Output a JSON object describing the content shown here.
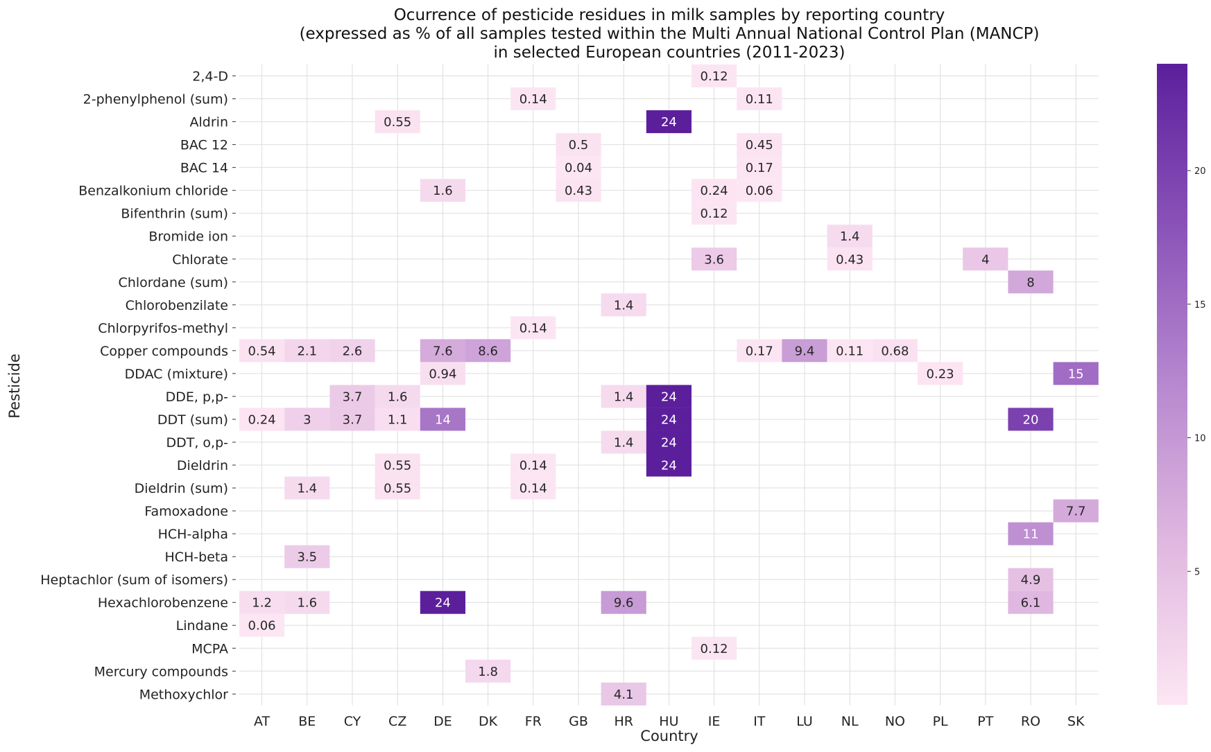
{
  "chart_data": {
    "type": "heatmap",
    "title": [
      "Ocurrence of pesticide residues in milk samples by reporting country",
      "(expressed as % of all samples tested within the Multi Annual National Control Plan (MANCP)",
      "in selected European countries (2011-2023)"
    ],
    "xlabel": "Country",
    "ylabel": "Pesticide",
    "x": [
      "AT",
      "BE",
      "CY",
      "CZ",
      "DE",
      "DK",
      "FR",
      "GB",
      "HR",
      "HU",
      "IE",
      "IT",
      "LU",
      "NL",
      "NO",
      "PL",
      "PT",
      "RO",
      "SK"
    ],
    "y": [
      "2,4-D",
      "2-phenylphenol (sum)",
      "Aldrin",
      "BAC 12",
      "BAC 14",
      "Benzalkonium chloride",
      "Bifenthrin (sum)",
      "Bromide ion",
      "Chlorate",
      "Chlordane (sum)",
      "Chlorobenzilate",
      "Chlorpyrifos-methyl",
      "Copper compounds",
      "DDAC (mixture)",
      "DDE, p,p-",
      "DDT (sum)",
      "DDT, o,p-",
      "Dieldrin",
      "Dieldrin (sum)",
      "Famoxadone",
      "HCH-alpha",
      "HCH-beta",
      "Heptachlor (sum of isomers)",
      "Hexachlorobenzene",
      "Lindane",
      "MCPA",
      "Mercury compounds",
      "Methoxychlor"
    ],
    "cells": [
      {
        "y": "2,4-D",
        "x": "IE",
        "value": 0.12,
        "label": "0.12"
      },
      {
        "y": "2-phenylphenol (sum)",
        "x": "FR",
        "value": 0.14,
        "label": "0.14"
      },
      {
        "y": "2-phenylphenol (sum)",
        "x": "IT",
        "value": 0.11,
        "label": "0.11"
      },
      {
        "y": "Aldrin",
        "x": "CZ",
        "value": 0.55,
        "label": "0.55"
      },
      {
        "y": "Aldrin",
        "x": "HU",
        "value": 24,
        "label": "24"
      },
      {
        "y": "BAC 12",
        "x": "GB",
        "value": 0.5,
        "label": "0.5"
      },
      {
        "y": "BAC 12",
        "x": "IT",
        "value": 0.45,
        "label": "0.45"
      },
      {
        "y": "BAC 14",
        "x": "GB",
        "value": 0.04,
        "label": "0.04"
      },
      {
        "y": "BAC 14",
        "x": "IT",
        "value": 0.17,
        "label": "0.17"
      },
      {
        "y": "Benzalkonium chloride",
        "x": "DE",
        "value": 1.6,
        "label": "1.6"
      },
      {
        "y": "Benzalkonium chloride",
        "x": "GB",
        "value": 0.43,
        "label": "0.43"
      },
      {
        "y": "Benzalkonium chloride",
        "x": "IE",
        "value": 0.24,
        "label": "0.24"
      },
      {
        "y": "Benzalkonium chloride",
        "x": "IT",
        "value": 0.06,
        "label": "0.06"
      },
      {
        "y": "Bifenthrin (sum)",
        "x": "IE",
        "value": 0.12,
        "label": "0.12"
      },
      {
        "y": "Bromide ion",
        "x": "NL",
        "value": 1.4,
        "label": "1.4"
      },
      {
        "y": "Chlorate",
        "x": "IE",
        "value": 3.6,
        "label": "3.6"
      },
      {
        "y": "Chlorate",
        "x": "NL",
        "value": 0.43,
        "label": "0.43"
      },
      {
        "y": "Chlorate",
        "x": "PT",
        "value": 4,
        "label": "4"
      },
      {
        "y": "Chlordane (sum)",
        "x": "RO",
        "value": 8,
        "label": "8"
      },
      {
        "y": "Chlorobenzilate",
        "x": "HR",
        "value": 1.4,
        "label": "1.4"
      },
      {
        "y": "Chlorpyrifos-methyl",
        "x": "FR",
        "value": 0.14,
        "label": "0.14"
      },
      {
        "y": "Copper compounds",
        "x": "AT",
        "value": 0.54,
        "label": "0.54"
      },
      {
        "y": "Copper compounds",
        "x": "BE",
        "value": 2.1,
        "label": "2.1"
      },
      {
        "y": "Copper compounds",
        "x": "CY",
        "value": 2.6,
        "label": "2.6"
      },
      {
        "y": "Copper compounds",
        "x": "DE",
        "value": 7.6,
        "label": "7.6"
      },
      {
        "y": "Copper compounds",
        "x": "DK",
        "value": 8.6,
        "label": "8.6"
      },
      {
        "y": "Copper compounds",
        "x": "IT",
        "value": 0.17,
        "label": "0.17"
      },
      {
        "y": "Copper compounds",
        "x": "LU",
        "value": 9.4,
        "label": "9.4"
      },
      {
        "y": "Copper compounds",
        "x": "NL",
        "value": 0.11,
        "label": "0.11"
      },
      {
        "y": "Copper compounds",
        "x": "NO",
        "value": 0.68,
        "label": "0.68"
      },
      {
        "y": "DDAC (mixture)",
        "x": "DE",
        "value": 0.94,
        "label": "0.94"
      },
      {
        "y": "DDAC (mixture)",
        "x": "PL",
        "value": 0.23,
        "label": "0.23"
      },
      {
        "y": "DDAC (mixture)",
        "x": "SK",
        "value": 15,
        "label": "15"
      },
      {
        "y": "DDE, p,p-",
        "x": "CY",
        "value": 3.7,
        "label": "3.7"
      },
      {
        "y": "DDE, p,p-",
        "x": "CZ",
        "value": 1.6,
        "label": "1.6"
      },
      {
        "y": "DDE, p,p-",
        "x": "HR",
        "value": 1.4,
        "label": "1.4"
      },
      {
        "y": "DDE, p,p-",
        "x": "HU",
        "value": 24,
        "label": "24"
      },
      {
        "y": "DDT (sum)",
        "x": "AT",
        "value": 0.24,
        "label": "0.24"
      },
      {
        "y": "DDT (sum)",
        "x": "BE",
        "value": 3,
        "label": "3"
      },
      {
        "y": "DDT (sum)",
        "x": "CY",
        "value": 3.7,
        "label": "3.7"
      },
      {
        "y": "DDT (sum)",
        "x": "CZ",
        "value": 1.1,
        "label": "1.1"
      },
      {
        "y": "DDT (sum)",
        "x": "DE",
        "value": 14,
        "label": "14"
      },
      {
        "y": "DDT (sum)",
        "x": "HU",
        "value": 24,
        "label": "24"
      },
      {
        "y": "DDT (sum)",
        "x": "RO",
        "value": 20,
        "label": "20"
      },
      {
        "y": "DDT, o,p-",
        "x": "HR",
        "value": 1.4,
        "label": "1.4"
      },
      {
        "y": "DDT, o,p-",
        "x": "HU",
        "value": 24,
        "label": "24"
      },
      {
        "y": "Dieldrin",
        "x": "CZ",
        "value": 0.55,
        "label": "0.55"
      },
      {
        "y": "Dieldrin",
        "x": "FR",
        "value": 0.14,
        "label": "0.14"
      },
      {
        "y": "Dieldrin",
        "x": "HU",
        "value": 24,
        "label": "24"
      },
      {
        "y": "Dieldrin (sum)",
        "x": "BE",
        "value": 1.4,
        "label": "1.4"
      },
      {
        "y": "Dieldrin (sum)",
        "x": "CZ",
        "value": 0.55,
        "label": "0.55"
      },
      {
        "y": "Dieldrin (sum)",
        "x": "FR",
        "value": 0.14,
        "label": "0.14"
      },
      {
        "y": "Famoxadone",
        "x": "SK",
        "value": 7.7,
        "label": "7.7"
      },
      {
        "y": "HCH-alpha",
        "x": "RO",
        "value": 11,
        "label": "11"
      },
      {
        "y": "HCH-beta",
        "x": "BE",
        "value": 3.5,
        "label": "3.5"
      },
      {
        "y": "Heptachlor (sum of isomers)",
        "x": "RO",
        "value": 4.9,
        "label": "4.9"
      },
      {
        "y": "Hexachlorobenzene",
        "x": "AT",
        "value": 1.2,
        "label": "1.2"
      },
      {
        "y": "Hexachlorobenzene",
        "x": "BE",
        "value": 1.6,
        "label": "1.6"
      },
      {
        "y": "Hexachlorobenzene",
        "x": "DE",
        "value": 24,
        "label": "24"
      },
      {
        "y": "Hexachlorobenzene",
        "x": "HR",
        "value": 9.6,
        "label": "9.6"
      },
      {
        "y": "Hexachlorobenzene",
        "x": "RO",
        "value": 6.1,
        "label": "6.1"
      },
      {
        "y": "Lindane",
        "x": "AT",
        "value": 0.06,
        "label": "0.06"
      },
      {
        "y": "MCPA",
        "x": "IE",
        "value": 0.12,
        "label": "0.12"
      },
      {
        "y": "Mercury compounds",
        "x": "DK",
        "value": 1.8,
        "label": "1.8"
      },
      {
        "y": "Methoxychlor",
        "x": "HR",
        "value": 4.1,
        "label": "4.1"
      }
    ],
    "colorbar": {
      "ticks": [
        5,
        10,
        15,
        20
      ],
      "vmin": 0,
      "vmax": 24,
      "colors": [
        "#fde6f3",
        "#e0b8e0",
        "#b788cf",
        "#8a52b8",
        "#5c1f9c"
      ]
    },
    "grid": true
  }
}
